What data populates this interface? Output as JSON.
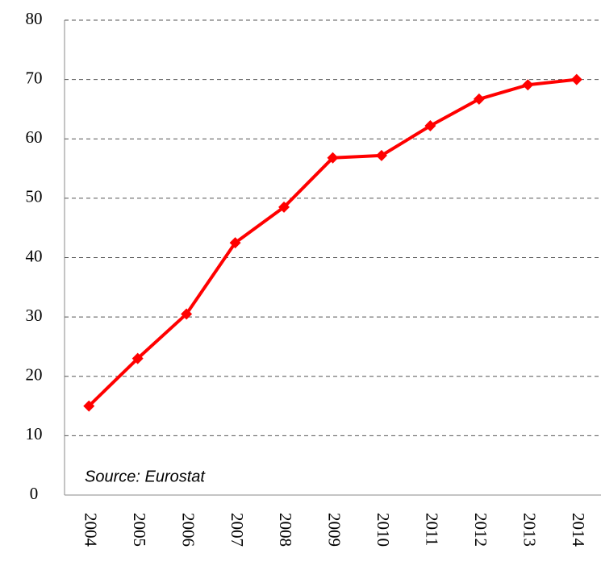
{
  "chart_data": {
    "type": "line",
    "annotation": "Source: Eurostat",
    "categories": [
      "2004",
      "2005",
      "2006",
      "2007",
      "2008",
      "2009",
      "2010",
      "2011",
      "2012",
      "2013",
      "2014"
    ],
    "values": [
      15,
      23,
      30.5,
      42.5,
      48.5,
      56.8,
      57.2,
      62.2,
      66.7,
      69.1,
      70
    ],
    "color": "#ff0000",
    "ylim": [
      0,
      80
    ],
    "yticks": [
      0,
      10,
      20,
      30,
      40,
      50,
      60,
      70,
      80
    ],
    "grid": true
  }
}
